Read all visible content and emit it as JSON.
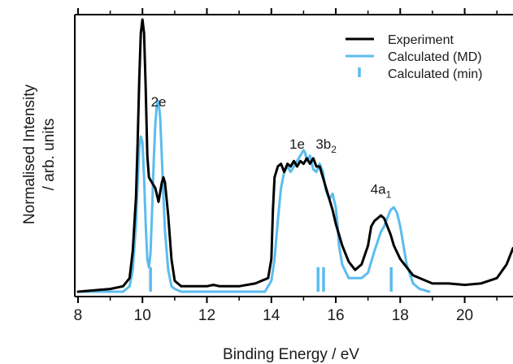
{
  "chart_data": {
    "type": "line",
    "xlabel": "Binding Energy / eV",
    "ylabel_line1": "Normalised Intensity",
    "ylabel_line2": "/ arb. units",
    "xlim": [
      7.9,
      21.5
    ],
    "ylim": [
      0,
      1.0
    ],
    "xticks": [
      8,
      10,
      12,
      14,
      16,
      18,
      20
    ],
    "colors": {
      "experiment": "#000000",
      "calculated": "#5bbcee"
    },
    "legend": {
      "position": "top-right",
      "entries": [
        "Experiment",
        "Calculated (MD)",
        "Calculated (min)"
      ]
    },
    "annotations": [
      {
        "text": "2e",
        "x": 10.5,
        "y": 0.68
      },
      {
        "text": "1e",
        "x": 14.8,
        "y": 0.525
      },
      {
        "text": "3b",
        "sub": "2",
        "x": 15.7,
        "y": 0.525
      },
      {
        "text": "4a",
        "sub": "1",
        "x": 17.4,
        "y": 0.36
      }
    ],
    "series": [
      {
        "name": "Experiment",
        "x": [
          8.0,
          9.0,
          9.4,
          9.6,
          9.7,
          9.8,
          9.85,
          9.9,
          9.95,
          10.0,
          10.05,
          10.1,
          10.15,
          10.2,
          10.3,
          10.4,
          10.5,
          10.6,
          10.65,
          10.7,
          10.8,
          10.9,
          11.0,
          11.2,
          11.5,
          12.0,
          12.2,
          12.4,
          12.6,
          13.0,
          13.5,
          13.9,
          14.0,
          14.05,
          14.1,
          14.2,
          14.3,
          14.4,
          14.5,
          14.6,
          14.7,
          14.8,
          14.9,
          15.0,
          15.1,
          15.2,
          15.3,
          15.4,
          15.5,
          15.6,
          15.7,
          15.8,
          15.9,
          16.0,
          16.2,
          16.4,
          16.6,
          16.8,
          17.0,
          17.1,
          17.2,
          17.3,
          17.4,
          17.5,
          17.6,
          17.7,
          17.8,
          18.0,
          18.2,
          18.4,
          18.6,
          18.8,
          19.0,
          19.5,
          20.0,
          20.5,
          21.0,
          21.3,
          21.5
        ],
        "y": [
          0.0,
          0.01,
          0.02,
          0.05,
          0.15,
          0.35,
          0.55,
          0.78,
          0.95,
          1.0,
          0.95,
          0.75,
          0.5,
          0.42,
          0.4,
          0.38,
          0.33,
          0.4,
          0.42,
          0.4,
          0.28,
          0.12,
          0.04,
          0.02,
          0.02,
          0.02,
          0.025,
          0.02,
          0.02,
          0.02,
          0.03,
          0.05,
          0.12,
          0.3,
          0.42,
          0.46,
          0.47,
          0.44,
          0.47,
          0.46,
          0.48,
          0.46,
          0.48,
          0.47,
          0.49,
          0.47,
          0.49,
          0.46,
          0.46,
          0.42,
          0.38,
          0.34,
          0.3,
          0.25,
          0.17,
          0.11,
          0.08,
          0.1,
          0.17,
          0.24,
          0.26,
          0.27,
          0.28,
          0.27,
          0.24,
          0.21,
          0.17,
          0.12,
          0.09,
          0.06,
          0.05,
          0.04,
          0.03,
          0.03,
          0.025,
          0.03,
          0.05,
          0.1,
          0.16
        ]
      },
      {
        "name": "Calculated (MD)",
        "x": [
          8.0,
          9.4,
          9.6,
          9.7,
          9.8,
          9.85,
          9.9,
          9.95,
          10.0,
          10.05,
          10.1,
          10.15,
          10.2,
          10.25,
          10.3,
          10.35,
          10.4,
          10.45,
          10.5,
          10.55,
          10.6,
          10.65,
          10.7,
          10.8,
          10.9,
          11.0,
          11.2,
          13.8,
          14.0,
          14.1,
          14.2,
          14.3,
          14.4,
          14.5,
          14.6,
          14.7,
          14.8,
          14.9,
          15.0,
          15.05,
          15.1,
          15.15,
          15.2,
          15.3,
          15.4,
          15.5,
          15.6,
          15.65,
          15.7,
          15.8,
          15.9,
          16.0,
          16.05,
          16.1,
          16.2,
          16.4,
          16.6,
          16.8,
          17.0,
          17.2,
          17.4,
          17.5,
          17.6,
          17.7,
          17.8,
          17.9,
          18.0,
          18.1,
          18.2,
          18.4,
          18.6,
          18.9
        ],
        "y": [
          0.0,
          0.0,
          0.02,
          0.08,
          0.25,
          0.4,
          0.53,
          0.57,
          0.55,
          0.42,
          0.25,
          0.12,
          0.09,
          0.14,
          0.3,
          0.48,
          0.62,
          0.69,
          0.7,
          0.64,
          0.5,
          0.35,
          0.22,
          0.08,
          0.02,
          0.01,
          0.0,
          0.0,
          0.04,
          0.12,
          0.26,
          0.38,
          0.44,
          0.46,
          0.44,
          0.46,
          0.48,
          0.5,
          0.52,
          0.51,
          0.48,
          0.49,
          0.5,
          0.45,
          0.44,
          0.47,
          0.44,
          0.4,
          0.37,
          0.34,
          0.36,
          0.31,
          0.25,
          0.17,
          0.1,
          0.05,
          0.05,
          0.05,
          0.07,
          0.15,
          0.22,
          0.24,
          0.27,
          0.3,
          0.31,
          0.29,
          0.24,
          0.17,
          0.1,
          0.03,
          0.01,
          0.0
        ]
      }
    ],
    "sticks": {
      "name": "Calculated (min)",
      "x": [
        10.25,
        15.45,
        15.62,
        17.72
      ],
      "height": 0.09
    }
  }
}
